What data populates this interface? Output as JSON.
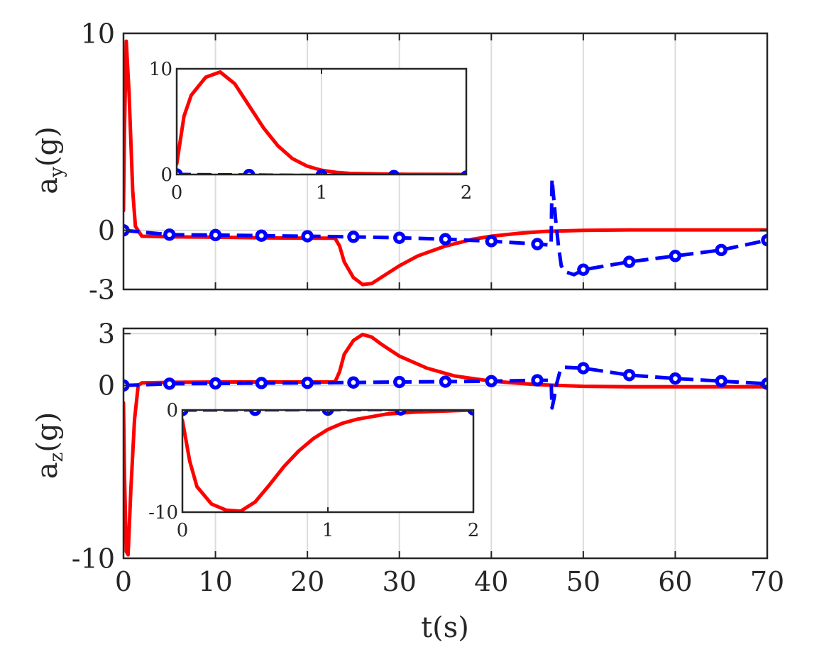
{
  "chart_data": [
    {
      "type": "line",
      "ylabel": "a",
      "ylabel_sub": "y",
      "ylabel_unit": "(g)",
      "xlim": [
        0,
        70
      ],
      "ylim": [
        -3,
        10
      ],
      "yticks": [
        -3,
        0,
        10
      ],
      "ytick_labels": [
        "-3",
        "0",
        "10"
      ],
      "xticks": [
        0,
        10,
        20,
        30,
        40,
        50,
        60,
        70
      ],
      "grid": true,
      "series": [
        {
          "color": "#ff0000",
          "style": "solid",
          "x": [
            0,
            0.1,
            0.3,
            0.6,
            1.0,
            1.3,
            2,
            5,
            10,
            15,
            20,
            23,
            23.5,
            24,
            25,
            26,
            27,
            28,
            30,
            32,
            35,
            38,
            40,
            43,
            46,
            50,
            55,
            60,
            65,
            70
          ],
          "y": [
            1,
            5,
            9.6,
            7,
            2,
            0.2,
            -0.3,
            -0.33,
            -0.35,
            -0.38,
            -0.4,
            -0.4,
            -0.8,
            -1.6,
            -2.4,
            -2.75,
            -2.7,
            -2.4,
            -1.8,
            -1.3,
            -0.8,
            -0.45,
            -0.3,
            -0.15,
            -0.05,
            0,
            0.02,
            0.02,
            0.02,
            0.02
          ]
        },
        {
          "color": "#0000ff",
          "style": "dashed",
          "marker": "circle",
          "x": [
            0,
            5,
            10,
            15,
            20,
            25,
            30,
            35,
            40,
            45,
            46.5,
            46.6,
            47,
            47.3,
            47.6,
            48,
            49,
            50,
            55,
            60,
            65,
            70
          ],
          "y": [
            0,
            -0.22,
            -0.24,
            -0.27,
            -0.3,
            -0.33,
            -0.38,
            -0.45,
            -0.55,
            -0.7,
            -0.75,
            2.6,
            0.5,
            -0.8,
            -1.8,
            -2.1,
            -2.25,
            -2.0,
            -1.6,
            -1.3,
            -1.0,
            -0.5
          ]
        }
      ],
      "inset": {
        "xlim": [
          0,
          2
        ],
        "ylim": [
          0,
          10
        ],
        "xticks": [
          0,
          1,
          2
        ],
        "yticks": [
          0,
          10
        ],
        "series": [
          {
            "color": "#ff0000",
            "style": "solid",
            "x": [
              0,
              0.05,
              0.1,
              0.2,
              0.3,
              0.4,
              0.5,
              0.6,
              0.7,
              0.8,
              0.9,
              1.0,
              1.1,
              1.2,
              1.4,
              1.6,
              2.0
            ],
            "y": [
              1,
              5.5,
              7.5,
              9.2,
              9.7,
              8.6,
              6.5,
              4.4,
              2.7,
              1.5,
              0.8,
              0.4,
              0.2,
              0.1,
              0.05,
              0.02,
              0
            ]
          },
          {
            "color": "#0000ff",
            "style": "dashed",
            "marker": "circle",
            "x": [
              0,
              0.5,
              1.0,
              1.5,
              2.0
            ],
            "y": [
              0,
              -0.05,
              -0.1,
              -0.15,
              -0.2
            ]
          }
        ]
      }
    },
    {
      "type": "line",
      "ylabel": "a",
      "ylabel_sub": "z",
      "ylabel_unit": "(g)",
      "xlabel": "t(s)",
      "xlim": [
        0,
        70
      ],
      "ylim": [
        -10,
        3.3
      ],
      "yticks": [
        -10,
        0,
        3
      ],
      "ytick_labels": [
        "-10",
        "0",
        "3"
      ],
      "xticks": [
        0,
        10,
        20,
        30,
        40,
        50,
        60,
        70
      ],
      "xtick_labels": [
        "0",
        "10",
        "20",
        "30",
        "40",
        "50",
        "60",
        "70"
      ],
      "grid": true,
      "series": [
        {
          "color": "#ff0000",
          "style": "solid",
          "x": [
            0,
            0.1,
            0.3,
            0.5,
            0.8,
            1.2,
            1.6,
            2,
            5,
            10,
            15,
            20,
            23,
            23.5,
            24,
            25,
            26,
            27,
            28,
            30,
            33,
            36,
            40,
            45,
            50,
            55,
            60,
            65,
            70
          ],
          "y": [
            -1,
            -5,
            -9.6,
            -9.8,
            -6,
            -2,
            0,
            0.15,
            0.18,
            0.2,
            0.2,
            0.2,
            0.2,
            0.8,
            1.8,
            2.6,
            2.95,
            2.8,
            2.4,
            1.7,
            1.0,
            0.55,
            0.25,
            0.05,
            -0.05,
            -0.08,
            -0.08,
            -0.08,
            -0.08
          ]
        },
        {
          "color": "#0000ff",
          "style": "dashed",
          "marker": "circle",
          "x": [
            0,
            5,
            10,
            15,
            20,
            25,
            30,
            35,
            40,
            45,
            46.5,
            46.6,
            46.8,
            47.1,
            47.5,
            48,
            50,
            55,
            60,
            65,
            70
          ],
          "y": [
            0,
            0.1,
            0.12,
            0.14,
            0.15,
            0.17,
            0.2,
            0.22,
            0.25,
            0.3,
            0.3,
            -1.3,
            -0.8,
            0.1,
            0.9,
            1.05,
            1.0,
            0.6,
            0.4,
            0.25,
            0.1
          ]
        }
      ],
      "inset": {
        "xlim": [
          0,
          2
        ],
        "ylim": [
          -10,
          0
        ],
        "xticks": [
          0,
          1,
          2
        ],
        "yticks": [
          -10,
          0
        ],
        "series": [
          {
            "color": "#ff0000",
            "style": "solid",
            "x": [
              0,
              0.05,
              0.1,
              0.2,
              0.3,
              0.4,
              0.5,
              0.6,
              0.7,
              0.8,
              0.9,
              1.0,
              1.1,
              1.2,
              1.4,
              1.6,
              2.0
            ],
            "y": [
              -1,
              -5,
              -7.5,
              -9.2,
              -9.8,
              -9.9,
              -9.0,
              -7.3,
              -5.5,
              -4.0,
              -2.8,
              -1.9,
              -1.3,
              -0.9,
              -0.4,
              -0.2,
              0
            ]
          },
          {
            "color": "#0000ff",
            "style": "dashed",
            "marker": "circle",
            "x": [
              0,
              0.5,
              1.0,
              1.5,
              2.0
            ],
            "y": [
              0,
              0.02,
              0.04,
              0.05,
              0.06
            ]
          }
        ]
      }
    }
  ]
}
